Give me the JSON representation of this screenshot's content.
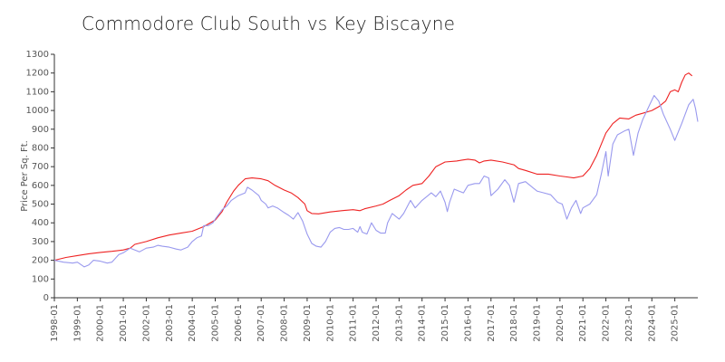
{
  "chart_data": {
    "type": "line",
    "title": "Commodore Club South vs Key Biscayne",
    "ylabel": "Price Per Sq. Ft.",
    "xlabel": "",
    "ylim": [
      0,
      1300
    ],
    "yticks": [
      "0",
      "100",
      "200",
      "300",
      "400",
      "500",
      "600",
      "700",
      "800",
      "900",
      "1000",
      "1100",
      "1200",
      "1300"
    ],
    "x_ticks": [
      "1998-01",
      "1999-01",
      "2000-01",
      "2001-01",
      "2002-01",
      "2003-01",
      "2004-01",
      "2005-01",
      "2006-01",
      "2007-01",
      "2008-01",
      "2009-01",
      "2010-01",
      "2011-01",
      "2012-01",
      "2013-01",
      "2014-01",
      "2015-01",
      "2016-01",
      "2017-01",
      "2018-01",
      "2019-01",
      "2020-01",
      "2021-01",
      "2022-01",
      "2023-01",
      "2024-01",
      "2025-01"
    ],
    "x_range": [
      1998.0,
      2025.85
    ],
    "grid": false,
    "legend": "none",
    "series": [
      {
        "color": "#ee2222",
        "points": [
          [
            1998.0,
            200
          ],
          [
            1998.5,
            215
          ],
          [
            1999.0,
            225
          ],
          [
            1999.5,
            235
          ],
          [
            2000.0,
            242
          ],
          [
            2000.5,
            248
          ],
          [
            2001.0,
            255
          ],
          [
            2001.3,
            265
          ],
          [
            2001.5,
            285
          ],
          [
            2002.0,
            300
          ],
          [
            2002.5,
            320
          ],
          [
            2003.0,
            335
          ],
          [
            2003.5,
            345
          ],
          [
            2004.0,
            355
          ],
          [
            2004.5,
            380
          ],
          [
            2005.0,
            415
          ],
          [
            2005.3,
            460
          ],
          [
            2005.5,
            510
          ],
          [
            2005.8,
            570
          ],
          [
            2006.0,
            600
          ],
          [
            2006.3,
            635
          ],
          [
            2006.6,
            640
          ],
          [
            2007.0,
            635
          ],
          [
            2007.3,
            625
          ],
          [
            2007.6,
            600
          ],
          [
            2008.0,
            575
          ],
          [
            2008.3,
            560
          ],
          [
            2008.6,
            535
          ],
          [
            2008.9,
            500
          ],
          [
            2009.0,
            465
          ],
          [
            2009.2,
            450
          ],
          [
            2009.5,
            448
          ],
          [
            2010.0,
            458
          ],
          [
            2010.5,
            465
          ],
          [
            2011.0,
            470
          ],
          [
            2011.3,
            465
          ],
          [
            2011.5,
            475
          ],
          [
            2012.0,
            490
          ],
          [
            2012.3,
            500
          ],
          [
            2012.6,
            520
          ],
          [
            2013.0,
            545
          ],
          [
            2013.3,
            575
          ],
          [
            2013.6,
            600
          ],
          [
            2014.0,
            610
          ],
          [
            2014.3,
            650
          ],
          [
            2014.6,
            700
          ],
          [
            2015.0,
            725
          ],
          [
            2015.5,
            730
          ],
          [
            2016.0,
            740
          ],
          [
            2016.3,
            735
          ],
          [
            2016.5,
            720
          ],
          [
            2016.7,
            730
          ],
          [
            2017.0,
            735
          ],
          [
            2017.5,
            725
          ],
          [
            2018.0,
            710
          ],
          [
            2018.2,
            690
          ],
          [
            2018.5,
            680
          ],
          [
            2019.0,
            660
          ],
          [
            2019.5,
            660
          ],
          [
            2020.0,
            650
          ],
          [
            2020.3,
            645
          ],
          [
            2020.6,
            640
          ],
          [
            2021.0,
            650
          ],
          [
            2021.3,
            690
          ],
          [
            2021.6,
            760
          ],
          [
            2022.0,
            880
          ],
          [
            2022.3,
            930
          ],
          [
            2022.6,
            960
          ],
          [
            2023.0,
            955
          ],
          [
            2023.3,
            975
          ],
          [
            2023.6,
            985
          ],
          [
            2024.0,
            1000
          ],
          [
            2024.3,
            1020
          ],
          [
            2024.6,
            1050
          ],
          [
            2024.8,
            1100
          ],
          [
            2025.0,
            1110
          ],
          [
            2025.15,
            1100
          ],
          [
            2025.3,
            1150
          ],
          [
            2025.45,
            1190
          ],
          [
            2025.6,
            1200
          ],
          [
            2025.75,
            1185
          ]
        ]
      },
      {
        "color": "#9999ee",
        "points": [
          [
            1998.0,
            200
          ],
          [
            1998.4,
            190
          ],
          [
            1998.8,
            185
          ],
          [
            1999.0,
            190
          ],
          [
            1999.3,
            165
          ],
          [
            1999.5,
            175
          ],
          [
            1999.7,
            200
          ],
          [
            2000.0,
            195
          ],
          [
            2000.3,
            185
          ],
          [
            2000.5,
            190
          ],
          [
            2000.8,
            230
          ],
          [
            2001.0,
            240
          ],
          [
            2001.3,
            265
          ],
          [
            2001.5,
            255
          ],
          [
            2001.7,
            245
          ],
          [
            2002.0,
            265
          ],
          [
            2002.3,
            270
          ],
          [
            2002.5,
            280
          ],
          [
            2002.7,
            275
          ],
          [
            2003.0,
            270
          ],
          [
            2003.3,
            260
          ],
          [
            2003.5,
            255
          ],
          [
            2003.8,
            270
          ],
          [
            2004.0,
            300
          ],
          [
            2004.2,
            320
          ],
          [
            2004.4,
            330
          ],
          [
            2004.5,
            385
          ],
          [
            2004.7,
            385
          ],
          [
            2004.9,
            400
          ],
          [
            2005.0,
            420
          ],
          [
            2005.3,
            470
          ],
          [
            2005.5,
            490
          ],
          [
            2005.7,
            520
          ],
          [
            2006.0,
            545
          ],
          [
            2006.3,
            560
          ],
          [
            2006.4,
            590
          ],
          [
            2006.6,
            575
          ],
          [
            2006.9,
            545
          ],
          [
            2007.0,
            520
          ],
          [
            2007.2,
            500
          ],
          [
            2007.3,
            480
          ],
          [
            2007.5,
            490
          ],
          [
            2007.7,
            480
          ],
          [
            2008.0,
            455
          ],
          [
            2008.2,
            440
          ],
          [
            2008.4,
            420
          ],
          [
            2008.6,
            455
          ],
          [
            2008.8,
            410
          ],
          [
            2009.0,
            340
          ],
          [
            2009.2,
            290
          ],
          [
            2009.4,
            275
          ],
          [
            2009.6,
            270
          ],
          [
            2009.8,
            300
          ],
          [
            2010.0,
            350
          ],
          [
            2010.2,
            370
          ],
          [
            2010.4,
            375
          ],
          [
            2010.6,
            365
          ],
          [
            2010.8,
            365
          ],
          [
            2011.0,
            370
          ],
          [
            2011.2,
            350
          ],
          [
            2011.3,
            380
          ],
          [
            2011.4,
            350
          ],
          [
            2011.6,
            340
          ],
          [
            2011.8,
            400
          ],
          [
            2012.0,
            360
          ],
          [
            2012.2,
            345
          ],
          [
            2012.4,
            345
          ],
          [
            2012.5,
            400
          ],
          [
            2012.7,
            450
          ],
          [
            2013.0,
            420
          ],
          [
            2013.2,
            450
          ],
          [
            2013.5,
            520
          ],
          [
            2013.7,
            480
          ],
          [
            2014.0,
            520
          ],
          [
            2014.2,
            540
          ],
          [
            2014.4,
            560
          ],
          [
            2014.6,
            540
          ],
          [
            2014.8,
            570
          ],
          [
            2015.0,
            510
          ],
          [
            2015.1,
            460
          ],
          [
            2015.2,
            510
          ],
          [
            2015.4,
            580
          ],
          [
            2015.6,
            570
          ],
          [
            2015.8,
            560
          ],
          [
            2016.0,
            600
          ],
          [
            2016.3,
            610
          ],
          [
            2016.5,
            610
          ],
          [
            2016.7,
            650
          ],
          [
            2016.9,
            640
          ],
          [
            2017.0,
            545
          ],
          [
            2017.3,
            580
          ],
          [
            2017.6,
            630
          ],
          [
            2017.8,
            600
          ],
          [
            2018.0,
            510
          ],
          [
            2018.2,
            610
          ],
          [
            2018.5,
            620
          ],
          [
            2018.8,
            590
          ],
          [
            2019.0,
            570
          ],
          [
            2019.3,
            560
          ],
          [
            2019.6,
            550
          ],
          [
            2019.9,
            510
          ],
          [
            2020.1,
            500
          ],
          [
            2020.3,
            420
          ],
          [
            2020.5,
            480
          ],
          [
            2020.7,
            520
          ],
          [
            2020.9,
            450
          ],
          [
            2021.0,
            480
          ],
          [
            2021.3,
            500
          ],
          [
            2021.6,
            550
          ],
          [
            2021.8,
            660
          ],
          [
            2022.0,
            780
          ],
          [
            2022.1,
            650
          ],
          [
            2022.3,
            820
          ],
          [
            2022.5,
            870
          ],
          [
            2022.8,
            890
          ],
          [
            2023.0,
            900
          ],
          [
            2023.2,
            760
          ],
          [
            2023.4,
            880
          ],
          [
            2023.6,
            950
          ],
          [
            2023.9,
            1030
          ],
          [
            2024.1,
            1080
          ],
          [
            2024.3,
            1050
          ],
          [
            2024.5,
            980
          ],
          [
            2024.8,
            900
          ],
          [
            2025.0,
            840
          ],
          [
            2025.3,
            930
          ],
          [
            2025.6,
            1030
          ],
          [
            2025.8,
            1060
          ],
          [
            2025.9,
            1010
          ],
          [
            2026.0,
            940
          ]
        ]
      }
    ]
  }
}
